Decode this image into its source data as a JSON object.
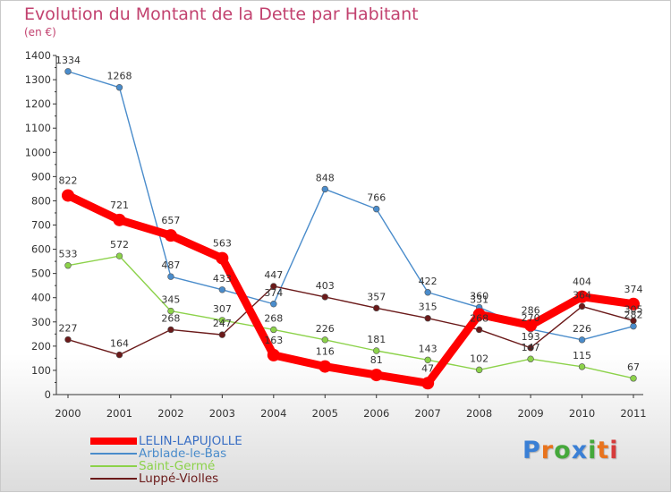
{
  "chart_data": {
    "type": "line",
    "title": "Evolution du Montant de la Dette par Habitant",
    "subtitle": "(en €)",
    "categories": [
      "2000",
      "2001",
      "2002",
      "2003",
      "2004",
      "2005",
      "2006",
      "2007",
      "2008",
      "2009",
      "2010",
      "2011"
    ],
    "y_ticks": [
      "0",
      "100",
      "200",
      "300",
      "400",
      "500",
      "600",
      "700",
      "800",
      "900",
      "1000",
      "1100",
      "1200",
      "1300",
      "1400"
    ],
    "ylim": [
      0,
      1400
    ],
    "grid": false,
    "legend_position": "bottom-left",
    "series": [
      {
        "name": "LELIN-LAPUJOLLE",
        "color": "#ff0000",
        "values": [
          822,
          721,
          657,
          563,
          163,
          116,
          81,
          47,
          331,
          286,
          404,
          374
        ]
      },
      {
        "name": "Arblade-le-Bas",
        "color": "#4a8ccb",
        "values": [
          1334,
          1268,
          487,
          433,
          374,
          848,
          766,
          422,
          360,
          270,
          226,
          282
        ]
      },
      {
        "name": "Saint-Germé",
        "color": "#8cd24a",
        "values": [
          533,
          572,
          345,
          307,
          268,
          226,
          181,
          143,
          102,
          147,
          115,
          67
        ]
      },
      {
        "name": "Luppé-Violles",
        "color": "#6b1a1a",
        "values": [
          227,
          164,
          268,
          247,
          447,
          403,
          357,
          315,
          268,
          193,
          364,
          305
        ]
      }
    ]
  },
  "logo": {
    "text": "Proxiti",
    "colors": [
      "#3a7fd5",
      "#e8731d",
      "#45a83b",
      "#3a7fd5",
      "#45a83b",
      "#e8731d",
      "#d63b3b"
    ]
  }
}
